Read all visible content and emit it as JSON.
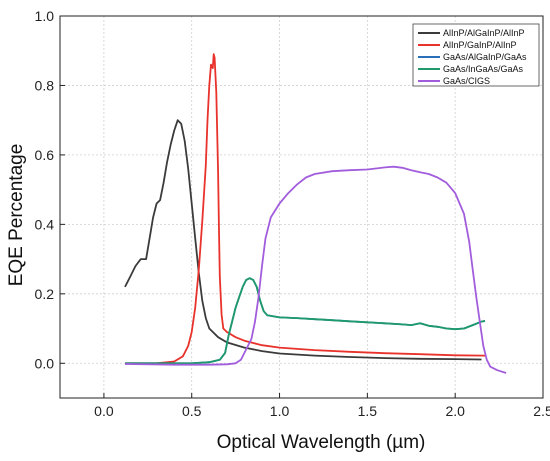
{
  "chart_data": {
    "type": "line",
    "title": "",
    "xlabel": "Optical Wavelength (µm)",
    "ylabel": "EQE Percentage",
    "xlim": [
      -0.25,
      2.5
    ],
    "ylim": [
      -0.1,
      1.0
    ],
    "xticks": [
      0.0,
      0.5,
      1.0,
      1.5,
      2.0,
      2.5
    ],
    "xtick_labels": [
      "0.0",
      "0.5",
      "1.0",
      "1.5",
      "2.0",
      "2.5"
    ],
    "yticks": [
      0.0,
      0.2,
      0.4,
      0.6,
      0.8,
      1.0
    ],
    "ytick_labels": [
      "0.0",
      "0.2",
      "0.4",
      "0.6",
      "0.8",
      "1.0"
    ],
    "grid": true,
    "legend_position": "top-right",
    "series": [
      {
        "name": "AlInP/AlGaInP/AlInP",
        "color": "#3b3b3b",
        "points": [
          [
            0.12,
            0.22
          ],
          [
            0.15,
            0.25
          ],
          [
            0.18,
            0.28
          ],
          [
            0.21,
            0.3
          ],
          [
            0.24,
            0.3
          ],
          [
            0.26,
            0.36
          ],
          [
            0.28,
            0.42
          ],
          [
            0.3,
            0.46
          ],
          [
            0.32,
            0.47
          ],
          [
            0.34,
            0.52
          ],
          [
            0.36,
            0.58
          ],
          [
            0.38,
            0.63
          ],
          [
            0.4,
            0.67
          ],
          [
            0.42,
            0.7
          ],
          [
            0.44,
            0.69
          ],
          [
            0.46,
            0.64
          ],
          [
            0.48,
            0.56
          ],
          [
            0.5,
            0.46
          ],
          [
            0.52,
            0.36
          ],
          [
            0.54,
            0.26
          ],
          [
            0.56,
            0.18
          ],
          [
            0.58,
            0.13
          ],
          [
            0.6,
            0.1
          ],
          [
            0.65,
            0.075
          ],
          [
            0.7,
            0.06
          ],
          [
            0.8,
            0.045
          ],
          [
            0.9,
            0.035
          ],
          [
            1.0,
            0.028
          ],
          [
            1.2,
            0.022
          ],
          [
            1.4,
            0.018
          ],
          [
            1.6,
            0.015
          ],
          [
            1.8,
            0.013
          ],
          [
            2.0,
            0.012
          ],
          [
            2.15,
            0.011
          ]
        ]
      },
      {
        "name": "AlInP/GaInP/AlInP",
        "color": "#e8322b",
        "points": [
          [
            0.12,
            0.0
          ],
          [
            0.3,
            0.0
          ],
          [
            0.4,
            0.005
          ],
          [
            0.45,
            0.02
          ],
          [
            0.48,
            0.05
          ],
          [
            0.5,
            0.09
          ],
          [
            0.52,
            0.16
          ],
          [
            0.54,
            0.27
          ],
          [
            0.56,
            0.41
          ],
          [
            0.58,
            0.57
          ],
          [
            0.59,
            0.7
          ],
          [
            0.6,
            0.8
          ],
          [
            0.61,
            0.86
          ],
          [
            0.62,
            0.85
          ],
          [
            0.625,
            0.89
          ],
          [
            0.63,
            0.88
          ],
          [
            0.64,
            0.78
          ],
          [
            0.65,
            0.55
          ],
          [
            0.655,
            0.38
          ],
          [
            0.66,
            0.25
          ],
          [
            0.67,
            0.14
          ],
          [
            0.68,
            0.1
          ],
          [
            0.7,
            0.09
          ],
          [
            0.75,
            0.075
          ],
          [
            0.8,
            0.065
          ],
          [
            0.9,
            0.052
          ],
          [
            1.0,
            0.045
          ],
          [
            1.2,
            0.038
          ],
          [
            1.4,
            0.033
          ],
          [
            1.6,
            0.029
          ],
          [
            1.8,
            0.026
          ],
          [
            2.0,
            0.023
          ],
          [
            2.17,
            0.022
          ]
        ]
      },
      {
        "name": "GaAs/AlGaInP/GaAs",
        "color": "#2a6fb8",
        "points": [
          [
            0.12,
            0.0
          ],
          [
            0.5,
            0.0
          ],
          [
            0.6,
            0.003
          ],
          [
            0.66,
            0.01
          ],
          [
            0.69,
            0.03
          ],
          [
            0.71,
            0.08
          ],
          [
            0.73,
            0.12
          ],
          [
            0.75,
            0.16
          ],
          [
            0.77,
            0.19
          ],
          [
            0.79,
            0.22
          ],
          [
            0.81,
            0.24
          ],
          [
            0.83,
            0.245
          ],
          [
            0.85,
            0.24
          ],
          [
            0.87,
            0.22
          ],
          [
            0.89,
            0.18
          ],
          [
            0.91,
            0.15
          ],
          [
            0.93,
            0.138
          ],
          [
            1.0,
            0.132
          ],
          [
            1.1,
            0.13
          ],
          [
            1.2,
            0.127
          ],
          [
            1.3,
            0.124
          ],
          [
            1.4,
            0.121
          ],
          [
            1.5,
            0.118
          ],
          [
            1.6,
            0.115
          ],
          [
            1.7,
            0.112
          ],
          [
            1.75,
            0.11
          ],
          [
            1.8,
            0.115
          ],
          [
            1.85,
            0.108
          ],
          [
            1.9,
            0.105
          ],
          [
            1.95,
            0.1
          ],
          [
            2.0,
            0.098
          ],
          [
            2.05,
            0.1
          ],
          [
            2.1,
            0.11
          ],
          [
            2.15,
            0.12
          ],
          [
            2.17,
            0.122
          ]
        ]
      },
      {
        "name": "GaAs/InGaAs/GaAs",
        "color": "#1f9a6b",
        "points": [
          [
            0.12,
            0.0
          ],
          [
            0.5,
            0.0
          ],
          [
            0.6,
            0.003
          ],
          [
            0.66,
            0.01
          ],
          [
            0.69,
            0.03
          ],
          [
            0.71,
            0.08
          ],
          [
            0.73,
            0.12
          ],
          [
            0.75,
            0.16
          ],
          [
            0.77,
            0.19
          ],
          [
            0.79,
            0.22
          ],
          [
            0.81,
            0.24
          ],
          [
            0.83,
            0.245
          ],
          [
            0.85,
            0.24
          ],
          [
            0.87,
            0.22
          ],
          [
            0.89,
            0.18
          ],
          [
            0.91,
            0.15
          ],
          [
            0.93,
            0.138
          ],
          [
            1.0,
            0.132
          ],
          [
            1.1,
            0.13
          ],
          [
            1.2,
            0.127
          ],
          [
            1.3,
            0.124
          ],
          [
            1.4,
            0.121
          ],
          [
            1.5,
            0.118
          ],
          [
            1.6,
            0.115
          ],
          [
            1.7,
            0.112
          ],
          [
            1.75,
            0.11
          ],
          [
            1.8,
            0.115
          ],
          [
            1.85,
            0.108
          ],
          [
            1.9,
            0.105
          ],
          [
            1.95,
            0.1
          ],
          [
            2.0,
            0.098
          ],
          [
            2.05,
            0.1
          ],
          [
            2.1,
            0.11
          ],
          [
            2.15,
            0.12
          ],
          [
            2.17,
            0.122
          ]
        ]
      },
      {
        "name": "GaAs/CIGS",
        "color": "#a25ddc",
        "points": [
          [
            0.12,
            -0.002
          ],
          [
            0.4,
            -0.004
          ],
          [
            0.6,
            -0.004
          ],
          [
            0.7,
            -0.003
          ],
          [
            0.75,
            0.0
          ],
          [
            0.78,
            0.01
          ],
          [
            0.8,
            0.03
          ],
          [
            0.82,
            0.05
          ],
          [
            0.84,
            0.07
          ],
          [
            0.86,
            0.12
          ],
          [
            0.88,
            0.19
          ],
          [
            0.9,
            0.28
          ],
          [
            0.92,
            0.36
          ],
          [
            0.95,
            0.42
          ],
          [
            1.0,
            0.46
          ],
          [
            1.05,
            0.49
          ],
          [
            1.1,
            0.515
          ],
          [
            1.15,
            0.535
          ],
          [
            1.2,
            0.545
          ],
          [
            1.3,
            0.553
          ],
          [
            1.4,
            0.556
          ],
          [
            1.5,
            0.558
          ],
          [
            1.6,
            0.564
          ],
          [
            1.65,
            0.566
          ],
          [
            1.7,
            0.563
          ],
          [
            1.75,
            0.556
          ],
          [
            1.8,
            0.55
          ],
          [
            1.85,
            0.545
          ],
          [
            1.9,
            0.535
          ],
          [
            1.95,
            0.52
          ],
          [
            2.0,
            0.49
          ],
          [
            2.05,
            0.43
          ],
          [
            2.08,
            0.35
          ],
          [
            2.1,
            0.27
          ],
          [
            2.12,
            0.19
          ],
          [
            2.14,
            0.12
          ],
          [
            2.16,
            0.05
          ],
          [
            2.18,
            0.01
          ],
          [
            2.2,
            -0.01
          ],
          [
            2.24,
            -0.02
          ],
          [
            2.29,
            -0.028
          ]
        ]
      }
    ]
  }
}
